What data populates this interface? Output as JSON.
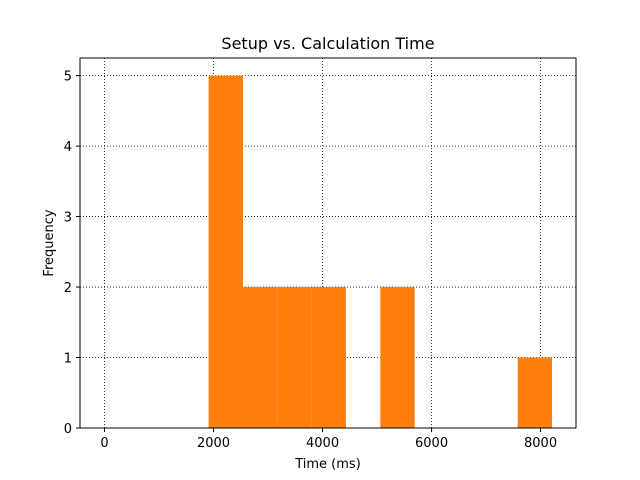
{
  "chart_data": {
    "type": "bar",
    "title": "Setup vs. Calculation Time",
    "xlabel": "Time (ms)",
    "ylabel": "Frequency",
    "xlim": [
      -450,
      8650
    ],
    "ylim": [
      0,
      5.25
    ],
    "xticks": [
      0,
      2000,
      4000,
      6000,
      8000
    ],
    "yticks": [
      0,
      1,
      2,
      3,
      4,
      5
    ],
    "grid": true,
    "bar_color": "#ff7f0e",
    "bins": [
      {
        "x0": 1910,
        "x1": 2540,
        "count": 5
      },
      {
        "x0": 2540,
        "x1": 3170,
        "count": 2
      },
      {
        "x0": 3170,
        "x1": 3800,
        "count": 2
      },
      {
        "x0": 3800,
        "x1": 4430,
        "count": 2
      },
      {
        "x0": 5060,
        "x1": 5690,
        "count": 2
      },
      {
        "x0": 7580,
        "x1": 8210,
        "count": 1
      }
    ]
  }
}
